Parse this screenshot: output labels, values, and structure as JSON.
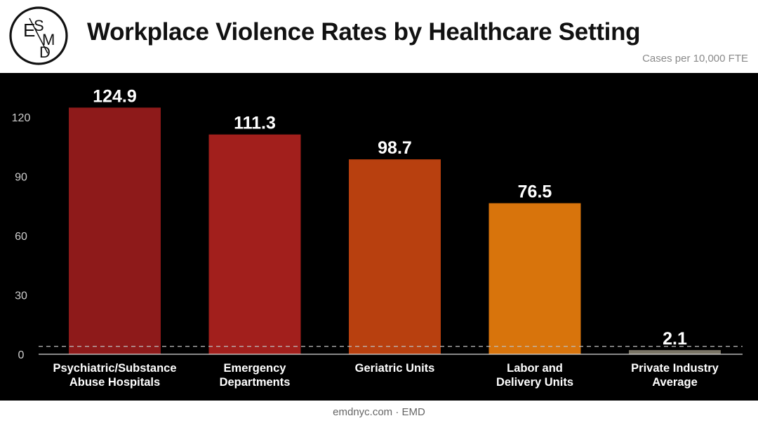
{
  "header": {
    "logo_text": "ESMD",
    "title": "Workplace Violence Rates by Healthcare Setting",
    "subtitle": "Cases per 10,000 FTE"
  },
  "footer": {
    "source": "emdnyc.com · EMD"
  },
  "colors": {
    "background": "#000000",
    "bars": [
      "#8e1a1a",
      "#a21f1c",
      "#b8400f",
      "#d8740c",
      "#7a7566"
    ],
    "reference_line": "#bdbdbd",
    "text": "#ffffff",
    "tick": "#cfcfcf"
  },
  "chart_data": {
    "type": "bar",
    "title": "Workplace Violence Rates by Healthcare Setting",
    "subtitle": "Cases per 10,000 FTE",
    "xlabel": "",
    "ylabel": "",
    "categories": [
      [
        "Psychiatric/Substance",
        "Abuse Hospitals"
      ],
      [
        "Emergency",
        "Departments"
      ],
      [
        "Geriatric Units"
      ],
      [
        "Labor and",
        "Delivery Units"
      ],
      [
        "Private Industry",
        "Average"
      ]
    ],
    "values": [
      124.9,
      111.3,
      98.7,
      76.5,
      2.1
    ],
    "data_labels": [
      "124.9",
      "111.3",
      "98.7",
      "76.5",
      "2.1"
    ],
    "yticks": [
      0,
      30,
      60,
      90,
      120
    ],
    "ylim": [
      0,
      135
    ],
    "reference_line": {
      "value": 4,
      "style": "dashed"
    },
    "grid": false,
    "legend": "none"
  }
}
